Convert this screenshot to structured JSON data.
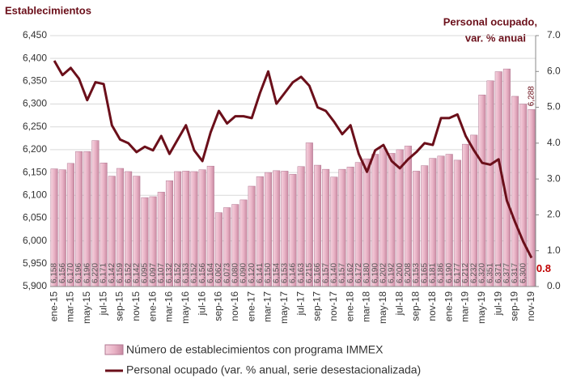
{
  "chart_data": {
    "type": "bar_line",
    "y_label": "Establecimientos",
    "y2_label": [
      "Personal ocupado,",
      "var. % anual"
    ],
    "categories": [
      "ene-15",
      null,
      "mar-15",
      null,
      "may-15",
      null,
      "jul-15",
      null,
      "sep-15",
      null,
      "nov-15",
      null,
      "ene-16",
      null,
      "mar-16",
      null,
      "may-16",
      null,
      "jul-16",
      null,
      "sep-16",
      null,
      "nov-16",
      null,
      "ene-17",
      null,
      "mar-17",
      null,
      "may-17",
      null,
      "jul-17",
      null,
      "sep-17",
      null,
      "nov-17",
      null,
      "ene-18",
      null,
      "mar-18",
      null,
      "may-18",
      null,
      "jul-18",
      null,
      "sep-18",
      null,
      "nov-18",
      null,
      "ene-19",
      null,
      "mar-19",
      null,
      "may-19",
      null,
      "jul-19",
      null,
      "sep-19",
      null,
      "nov-19"
    ],
    "series": [
      {
        "name": "Número de establecimientos con programa IMMEX",
        "color": "#e9b3c6",
        "values": [
          6158,
          6156,
          6170,
          6196,
          6196,
          6220,
          6171,
          6142,
          6159,
          6152,
          6142,
          6095,
          6097,
          6107,
          6132,
          6152,
          6153,
          6152,
          6156,
          6164,
          6062,
          6073,
          6080,
          6090,
          6120,
          6141,
          6150,
          6154,
          6153,
          6146,
          6163,
          6215,
          6166,
          6157,
          6140,
          6157,
          6162,
          6172,
          6180,
          6190,
          6202,
          6192,
          6200,
          6208,
          6153,
          6165,
          6181,
          6186,
          6190,
          6177,
          6212,
          6232,
          6320,
          6351,
          6371,
          6377,
          6317,
          6300,
          6288
        ],
        "value_labels": [
          "6,158",
          "6,156",
          "6,170",
          "6,196",
          "6,196",
          "6,220",
          "6,171",
          "6,142",
          "6,159",
          "6,152",
          "6,142",
          "6,095",
          "6,097",
          "6,107",
          "6,132",
          "6,152",
          "6,153",
          "6,152",
          "6,156",
          "6,164",
          "6,062",
          "6,073",
          "6,080",
          "6,090",
          "6,120",
          "6,141",
          "6,150",
          "6,154",
          "6,153",
          "6,146",
          "6,163",
          "6,215",
          "6,166",
          "6,157",
          "6,140",
          "6,157",
          "6,162",
          "6,172",
          "6,180",
          "6,190",
          "6,202",
          "6,192",
          "6,200",
          "6,208",
          "6,153",
          "6,165",
          "6,181",
          "6,186",
          "6,190",
          "6,177",
          "6,212",
          "6,232",
          "6,320",
          "6,351",
          "6,371",
          "6,377",
          "6,317",
          "6,300",
          "6,288"
        ]
      },
      {
        "name": "Personal ocupado (var. % anual, serie desestacionalizada)",
        "color": "#6b0f1a",
        "axis": "y2",
        "label_last": true,
        "values": [
          6.3,
          5.9,
          6.1,
          5.8,
          5.2,
          5.7,
          5.65,
          4.5,
          4.1,
          4.0,
          3.75,
          3.9,
          3.8,
          4.2,
          3.7,
          4.1,
          4.5,
          3.8,
          3.5,
          4.3,
          4.9,
          4.55,
          4.75,
          4.75,
          4.7,
          5.4,
          6.0,
          5.1,
          5.4,
          5.7,
          5.85,
          5.6,
          5.0,
          4.9,
          4.6,
          4.25,
          4.5,
          3.7,
          3.2,
          3.8,
          3.95,
          3.5,
          3.3,
          3.55,
          3.75,
          4.0,
          3.95,
          4.7,
          4.7,
          4.8,
          4.2,
          3.8,
          3.45,
          3.4,
          3.55,
          2.4,
          1.8,
          1.25,
          0.8
        ]
      }
    ],
    "ylim": [
      5900,
      6450
    ],
    "yticks": [
      {
        "value": 5900,
        "label": "5,900"
      },
      {
        "value": 5950,
        "label": "5,950"
      },
      {
        "value": 6000,
        "label": "6,000"
      },
      {
        "value": 6050,
        "label": "6,050"
      },
      {
        "value": 6100,
        "label": "6,100"
      },
      {
        "value": 6150,
        "label": "6,150"
      },
      {
        "value": 6200,
        "label": "6,200"
      },
      {
        "value": 6250,
        "label": "6,250"
      },
      {
        "value": 6300,
        "label": "6,300"
      },
      {
        "value": 6350,
        "label": "6,350"
      },
      {
        "value": 6400,
        "label": "6,400"
      },
      {
        "value": 6450,
        "label": "6,450"
      }
    ],
    "y2lim": [
      0,
      7
    ],
    "y2ticks": [
      {
        "value": 0,
        "label": "0.0"
      },
      {
        "value": 1,
        "label": "1.0"
      },
      {
        "value": 2,
        "label": "2.0"
      },
      {
        "value": 3,
        "label": "3.0"
      },
      {
        "value": 4,
        "label": "4.0"
      },
      {
        "value": 5,
        "label": "5.0"
      },
      {
        "value": 6,
        "label": "6.0"
      },
      {
        "value": 7,
        "label": "7.0"
      }
    ],
    "grid": true
  }
}
